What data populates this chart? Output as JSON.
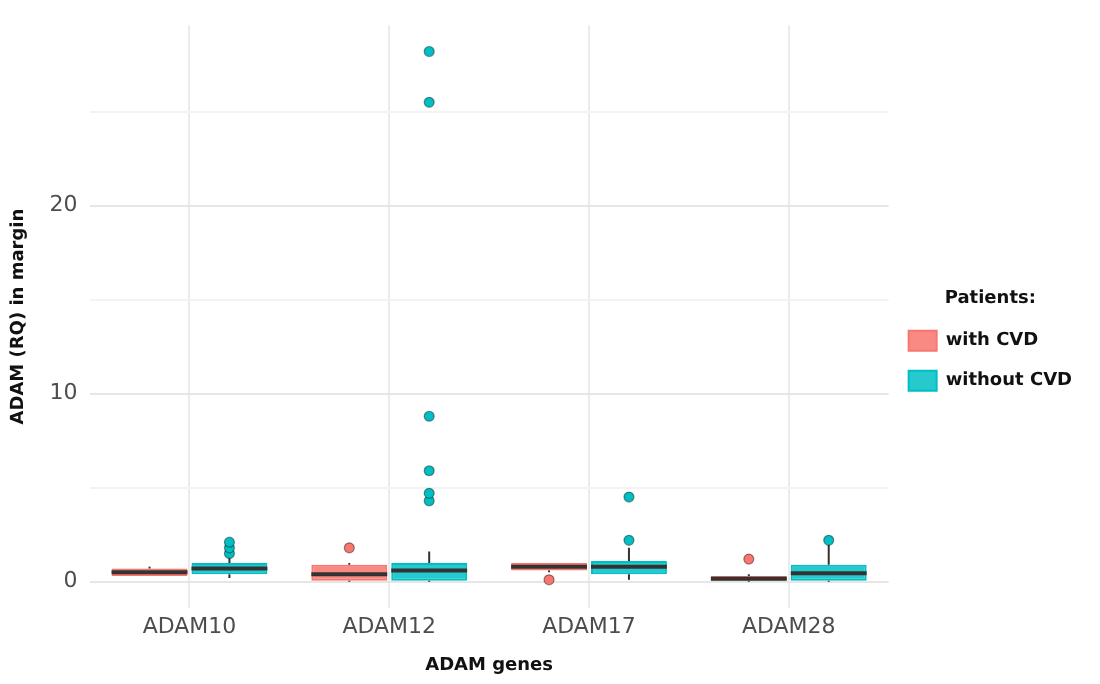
{
  "chart_data": {
    "type": "box",
    "xlabel": "ADAM genes",
    "ylabel": "ADAM (RQ) in margin",
    "legend_title": "Patients:",
    "legend": "right",
    "grid": true,
    "categories": [
      "ADAM10",
      "ADAM12",
      "ADAM17",
      "ADAM28"
    ],
    "ylim": [
      -1.4,
      29.6
    ],
    "yticks": [
      0,
      {
        "value": 5,
        "label": null
      },
      10,
      {
        "value": 15,
        "label": null
      },
      20,
      {
        "value": 25,
        "label": null
      }
    ],
    "series": [
      {
        "name": "with CVD",
        "color": "#f8766d",
        "boxes": [
          {
            "low": 0.3,
            "q1": 0.3,
            "median": 0.5,
            "q3": 0.7,
            "high": 0.8
          },
          {
            "low": 0,
            "q1": 0.05,
            "median": 0.4,
            "q3": 0.9,
            "high": 1.0,
            "outliers": [
              1.8
            ]
          },
          {
            "low": 0.5,
            "q1": 0.6,
            "median": 0.8,
            "q3": 1.0,
            "high": 1.0,
            "outliers": [
              0.1
            ]
          },
          {
            "low": 0,
            "q1": 0.05,
            "median": 0.15,
            "q3": 0.3,
            "high": 0.4,
            "outliers": [
              1.2
            ]
          }
        ]
      },
      {
        "name": "without CVD",
        "color": "#00bfc4",
        "boxes": [
          {
            "low": 0.2,
            "q1": 0.4,
            "median": 0.7,
            "q3": 1.0,
            "high": 1.3,
            "outliers": [
              1.5,
              1.8,
              2.1
            ]
          },
          {
            "low": 0,
            "q1": 0.05,
            "median": 0.6,
            "q3": 1.0,
            "high": 1.6,
            "outliers": [
              4.3,
              4.7,
              5.9,
              8.8,
              25.5,
              28.2
            ]
          },
          {
            "low": 0.1,
            "q1": 0.4,
            "median": 0.8,
            "q3": 1.1,
            "high": 1.8,
            "outliers": [
              2.2,
              4.5
            ]
          },
          {
            "low": 0,
            "q1": 0.05,
            "median": 0.45,
            "q3": 0.9,
            "high": 2.0,
            "outliers": [
              2.2
            ]
          }
        ]
      }
    ]
  }
}
